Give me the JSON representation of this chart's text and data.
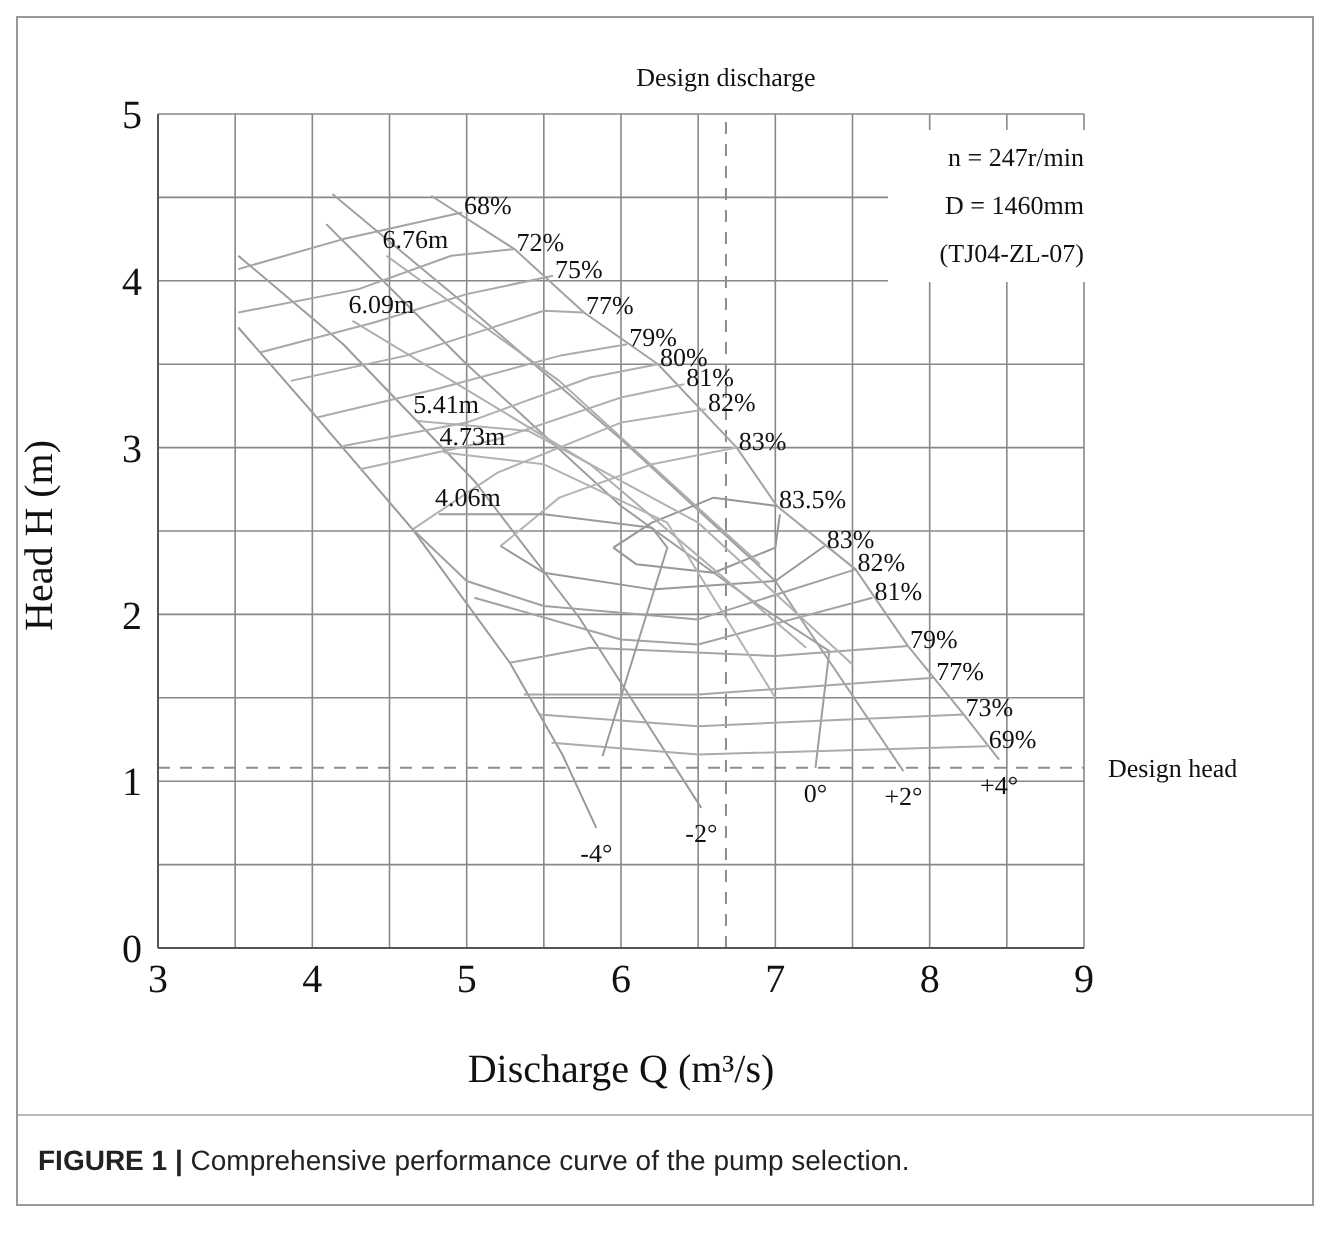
{
  "chart_data": {
    "type": "line",
    "xlabel": "Discharge Q (m³/s)",
    "ylabel": "Head H (m)",
    "xlim": [
      3,
      9
    ],
    "ylim": [
      0,
      5
    ],
    "xticks": [
      3,
      {
        "value": 3.5,
        "label": null
      },
      4,
      {
        "value": 4.5,
        "label": null
      },
      5,
      {
        "value": 5.5,
        "label": null
      },
      6,
      {
        "value": 6.5,
        "label": null
      },
      7,
      {
        "value": 7.5,
        "label": null
      },
      8,
      {
        "value": 8.5,
        "label": null
      },
      9
    ],
    "yticks": [
      0,
      {
        "value": 0.5,
        "label": null
      },
      1,
      {
        "value": 1.5,
        "label": null
      },
      2,
      {
        "value": 2.5,
        "label": null
      },
      3,
      {
        "value": 3.5,
        "label": null
      },
      4,
      {
        "value": 4.5,
        "label": null
      },
      5
    ],
    "grid": true,
    "legend": false,
    "series": [
      {
        "name": "-4°",
        "color": "#9a9a9a",
        "x": [
          3.52,
          4.03,
          4.65,
          5.28,
          5.62,
          5.84
        ],
        "values": [
          3.72,
          3.18,
          2.51,
          1.71,
          1.16,
          0.72
        ]
      },
      {
        "name": "-2°",
        "color": "#9c9c9c",
        "x": [
          3.52,
          4.2,
          5.05,
          5.73,
          6.52
        ],
        "values": [
          4.15,
          3.62,
          2.8,
          1.98,
          0.84
        ]
      },
      {
        "name": "0°",
        "color": "#9e9e9e",
        "x": [
          4.09,
          5,
          6,
          6.9,
          7.35,
          7.26
        ],
        "values": [
          4.34,
          3.5,
          2.65,
          2.05,
          1.78,
          1.08
        ]
      },
      {
        "name": "+2°",
        "color": "#a0a0a0",
        "x": [
          4.13,
          5,
          6,
          7,
          7.83
        ],
        "values": [
          4.52,
          3.85,
          3.05,
          2.2,
          1.06
        ]
      },
      {
        "name": "+4°",
        "color": "#a2a2a2",
        "x": [
          4.77,
          5.31,
          5.76,
          6.24,
          6.75,
          7.01,
          7.52,
          7.86,
          8.22,
          8.45
        ],
        "values": [
          4.51,
          4.19,
          3.81,
          3.5,
          3,
          2.65,
          2.27,
          1.81,
          1.4,
          1.13
        ]
      },
      {
        "name": "68%",
        "color": "#a4a4a4",
        "x": [
          3.52,
          4.2,
          4.97
        ],
        "values": [
          4.07,
          4.25,
          4.41
        ]
      },
      {
        "name": "72%",
        "color": "#a6a6a6",
        "x": [
          3.52,
          4.3,
          4.9,
          5.31
        ],
        "values": [
          3.81,
          3.95,
          4.15,
          4.19
        ]
      },
      {
        "name": "75%",
        "color": "#a8a8a8",
        "x": [
          3.66,
          4.4,
          5,
          5.56
        ],
        "values": [
          3.57,
          3.75,
          3.92,
          4.03
        ]
      },
      {
        "name": "77%",
        "color": "#aaaaaa",
        "x": [
          3.86,
          4.6,
          5.5,
          5.76
        ],
        "values": [
          3.4,
          3.55,
          3.82,
          3.81
        ]
      },
      {
        "name": "79%",
        "color": "#acacac",
        "x": [
          4.03,
          4.8,
          5.6,
          6.04
        ],
        "values": [
          3.18,
          3.35,
          3.55,
          3.62
        ]
      },
      {
        "name": "80%",
        "color": "#aeaeae",
        "x": [
          4.2,
          5,
          5.8,
          6.24
        ],
        "values": [
          3.01,
          3.15,
          3.42,
          3.5
        ]
      },
      {
        "name": "81%",
        "color": "#b0b0b0",
        "x": [
          4.31,
          5.2,
          6,
          6.41
        ],
        "values": [
          2.87,
          3.05,
          3.3,
          3.38
        ]
      },
      {
        "name": "82%",
        "color": "#b2b2b2",
        "x": [
          4.65,
          5.2,
          6,
          6.55
        ],
        "values": [
          2.51,
          2.85,
          3.15,
          3.23
        ]
      },
      {
        "name": "83%",
        "color": "#b4b4b4",
        "x": [
          5.22,
          5.6,
          6.2,
          6.75
        ],
        "values": [
          2.41,
          2.7,
          2.9,
          3
        ]
      },
      {
        "name": "83.5%",
        "color": "#969696",
        "x": [
          5.95,
          6.2,
          6.6,
          7.01
        ],
        "values": [
          2.4,
          2.55,
          2.7,
          2.65
        ]
      },
      {
        "color": "#979797",
        "x": [
          5.95,
          6.1,
          6.6,
          7,
          7.03
        ],
        "values": [
          2.4,
          2.3,
          2.25,
          2.4,
          2.6
        ]
      },
      {
        "name": "83%",
        "color": "#989898",
        "x": [
          5.22,
          5.5,
          6.2,
          7,
          7.32
        ],
        "values": [
          2.41,
          2.25,
          2.15,
          2.2,
          2.41
        ]
      },
      {
        "name": "82%",
        "color": "#a1a1a1",
        "x": [
          4.65,
          5,
          5.5,
          6.5,
          7.52
        ],
        "values": [
          2.51,
          2.2,
          2.05,
          1.97,
          2.27
        ]
      },
      {
        "name": "81%",
        "color": "#a3a3a3",
        "x": [
          5.05,
          6,
          6.5,
          7.63
        ],
        "values": [
          2.1,
          1.85,
          1.82,
          2.1
        ]
      },
      {
        "name": "79%",
        "color": "#a5a5a5",
        "x": [
          5.28,
          5.8,
          7,
          7.86
        ],
        "values": [
          1.71,
          1.8,
          1.75,
          1.81
        ]
      },
      {
        "name": "77%",
        "color": "#a7a7a7",
        "x": [
          5.37,
          6.5,
          8.03
        ],
        "values": [
          1.52,
          1.52,
          1.62
        ]
      },
      {
        "name": "73%",
        "color": "#a9a9a9",
        "x": [
          5.47,
          6.5,
          8.22
        ],
        "values": [
          1.4,
          1.33,
          1.4
        ]
      },
      {
        "name": "69%",
        "color": "#ababab",
        "x": [
          5.55,
          6.5,
          8.37
        ],
        "values": [
          1.23,
          1.16,
          1.21
        ]
      },
      {
        "name": "6.76m",
        "color": "#adadad",
        "x": [
          6.9,
          5.6,
          4.48
        ],
        "values": [
          2.3,
          3.4,
          4.15
        ]
      },
      {
        "name": "6.09m",
        "color": "#afafaf",
        "x": [
          7.2,
          5.8,
          4.26
        ],
        "values": [
          1.8,
          2.9,
          3.76
        ]
      },
      {
        "name": "5.41m",
        "color": "#b1b1b1",
        "x": [
          7.5,
          6.5,
          5.4,
          4.68
        ],
        "values": [
          1.7,
          2.55,
          3.1,
          3.16
        ]
      },
      {
        "name": "4.73m",
        "color": "#b3b3b3",
        "x": [
          7,
          6.3,
          5.5,
          4.85
        ],
        "values": [
          1.5,
          2.55,
          2.9,
          2.97
        ]
      },
      {
        "name": "4.06m",
        "color": "#9b9b9b",
        "x": [
          5.88,
          6.3,
          6.2,
          5.5,
          4.82
        ],
        "values": [
          1.15,
          2.4,
          2.52,
          2.6,
          2.6
        ]
      }
    ],
    "ref_lines": [
      {
        "axis": "x",
        "value": 6.68,
        "label": "Design discharge",
        "color": "#8c8c8c",
        "line_style": "dashed"
      },
      {
        "axis": "y",
        "value": 1.08,
        "label": "Design head",
        "color": "#8e8e8e",
        "line_style": "dashed"
      }
    ],
    "annotations": [
      "n = 247r/min",
      "D = 1460mm",
      "(TJ04-ZL-07)",
      "FIGURE 1 | Comprehensive performance curve of the pump selection."
    ]
  }
}
